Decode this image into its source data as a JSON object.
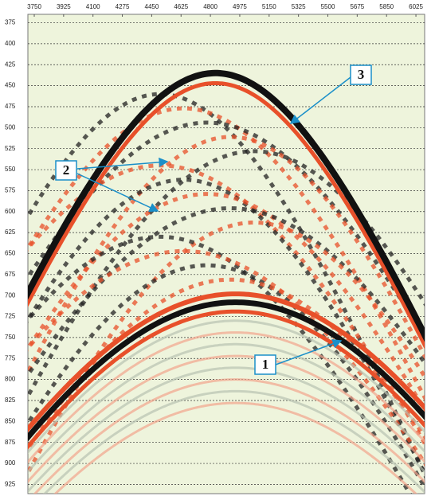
{
  "chart_data": {
    "type": "seismic",
    "xlim": [
      3712,
      6077
    ],
    "ylim": [
      365,
      936
    ],
    "xticks": [
      3750,
      3925,
      4100,
      4275,
      4450,
      4625,
      4800,
      4975,
      5150,
      5325,
      5500,
      5675,
      5850,
      6025
    ],
    "yticks": [
      375,
      400,
      425,
      450,
      475,
      500,
      525,
      550,
      575,
      600,
      625,
      650,
      675,
      700,
      725,
      750,
      775,
      800,
      825,
      850,
      875,
      900,
      925
    ],
    "grid": true,
    "annotations": [
      "1",
      "2",
      "3"
    ]
  }
}
